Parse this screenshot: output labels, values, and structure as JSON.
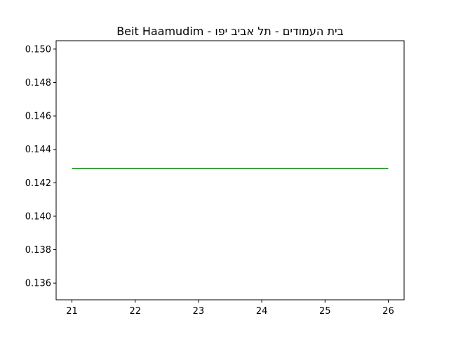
{
  "chart_data": {
    "type": "line",
    "title": "Beit Haamudim - בית העמודים - תל אביב יפו",
    "xlabel": "",
    "ylabel": "",
    "xlim": [
      20.75,
      26.25
    ],
    "ylim": [
      0.135,
      0.1505
    ],
    "x_ticks": [
      "21",
      "22",
      "23",
      "24",
      "25",
      "26"
    ],
    "y_ticks": [
      "0.136",
      "0.138",
      "0.140",
      "0.142",
      "0.144",
      "0.146",
      "0.148",
      "0.150"
    ],
    "grid": false,
    "series": [
      {
        "color": "#008000",
        "x": [
          21,
          26
        ],
        "y": [
          0.14286,
          0.14286
        ]
      }
    ]
  }
}
